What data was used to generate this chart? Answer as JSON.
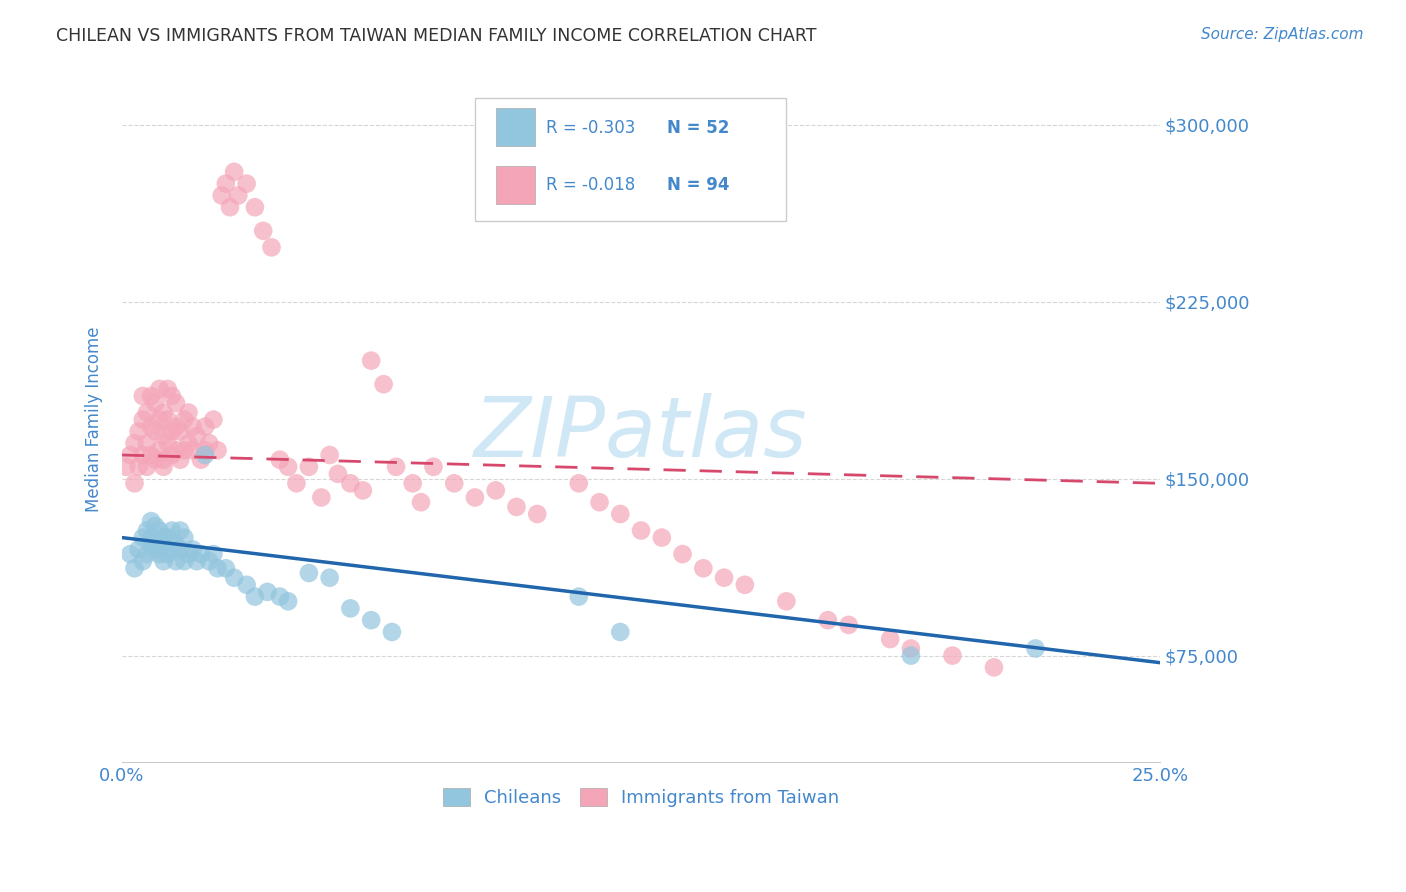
{
  "title": "CHILEAN VS IMMIGRANTS FROM TAIWAN MEDIAN FAMILY INCOME CORRELATION CHART",
  "source_text": "Source: ZipAtlas.com",
  "ylabel": "Median Family Income",
  "xlim": [
    0.0,
    0.25
  ],
  "ylim": [
    30000,
    320000
  ],
  "yticks": [
    75000,
    150000,
    225000,
    300000
  ],
  "ytick_labels": [
    "$75,000",
    "$150,000",
    "$225,000",
    "$300,000"
  ],
  "xticks": [
    0.0,
    0.05,
    0.1,
    0.15,
    0.2,
    0.25
  ],
  "xtick_labels": [
    "0.0%",
    "",
    "",
    "",
    "",
    "25.0%"
  ],
  "blue_R": "-0.303",
  "blue_N": "52",
  "pink_R": "-0.018",
  "pink_N": "94",
  "blue_color": "#92c5de",
  "pink_color": "#f4a6b8",
  "blue_line_color": "#2166ac",
  "pink_line_color": "#d6496d",
  "watermark_text": "ZIPatlas",
  "watermark_color": "#d0e8f5",
  "grid_color": "#cccccc",
  "background_color": "#ffffff",
  "tick_label_color": "#4488cc",
  "blue_scatter_x": [
    0.002,
    0.003,
    0.004,
    0.005,
    0.005,
    0.006,
    0.006,
    0.007,
    0.007,
    0.007,
    0.008,
    0.008,
    0.008,
    0.009,
    0.009,
    0.01,
    0.01,
    0.01,
    0.011,
    0.011,
    0.012,
    0.012,
    0.013,
    0.013,
    0.014,
    0.014,
    0.015,
    0.015,
    0.016,
    0.017,
    0.018,
    0.019,
    0.02,
    0.021,
    0.022,
    0.023,
    0.025,
    0.027,
    0.03,
    0.032,
    0.035,
    0.038,
    0.04,
    0.045,
    0.05,
    0.055,
    0.06,
    0.065,
    0.11,
    0.12,
    0.19,
    0.22
  ],
  "blue_scatter_y": [
    118000,
    112000,
    120000,
    115000,
    125000,
    118000,
    128000,
    122000,
    132000,
    125000,
    120000,
    130000,
    122000,
    118000,
    128000,
    125000,
    115000,
    122000,
    118000,
    125000,
    120000,
    128000,
    115000,
    122000,
    120000,
    128000,
    115000,
    125000,
    118000,
    120000,
    115000,
    118000,
    160000,
    115000,
    118000,
    112000,
    112000,
    108000,
    105000,
    100000,
    102000,
    100000,
    98000,
    110000,
    108000,
    95000,
    90000,
    85000,
    100000,
    85000,
    75000,
    78000
  ],
  "pink_scatter_x": [
    0.001,
    0.002,
    0.003,
    0.003,
    0.004,
    0.004,
    0.005,
    0.005,
    0.005,
    0.006,
    0.006,
    0.006,
    0.007,
    0.007,
    0.007,
    0.008,
    0.008,
    0.008,
    0.009,
    0.009,
    0.009,
    0.01,
    0.01,
    0.01,
    0.01,
    0.011,
    0.011,
    0.011,
    0.012,
    0.012,
    0.012,
    0.013,
    0.013,
    0.013,
    0.014,
    0.014,
    0.015,
    0.015,
    0.016,
    0.016,
    0.017,
    0.017,
    0.018,
    0.019,
    0.02,
    0.02,
    0.021,
    0.022,
    0.023,
    0.024,
    0.025,
    0.026,
    0.027,
    0.028,
    0.03,
    0.032,
    0.034,
    0.036,
    0.038,
    0.04,
    0.042,
    0.045,
    0.048,
    0.05,
    0.052,
    0.055,
    0.058,
    0.06,
    0.063,
    0.066,
    0.07,
    0.072,
    0.075,
    0.08,
    0.085,
    0.09,
    0.095,
    0.1,
    0.11,
    0.115,
    0.12,
    0.125,
    0.13,
    0.135,
    0.14,
    0.145,
    0.15,
    0.16,
    0.17,
    0.175,
    0.185,
    0.19,
    0.2,
    0.21
  ],
  "pink_scatter_y": [
    155000,
    160000,
    148000,
    165000,
    155000,
    170000,
    160000,
    175000,
    185000,
    155000,
    165000,
    178000,
    160000,
    172000,
    185000,
    158000,
    170000,
    182000,
    162000,
    175000,
    188000,
    158000,
    168000,
    178000,
    155000,
    165000,
    175000,
    188000,
    160000,
    170000,
    185000,
    162000,
    172000,
    182000,
    158000,
    170000,
    162000,
    175000,
    165000,
    178000,
    162000,
    172000,
    168000,
    158000,
    162000,
    172000,
    165000,
    175000,
    162000,
    270000,
    275000,
    265000,
    280000,
    270000,
    275000,
    265000,
    255000,
    248000,
    158000,
    155000,
    148000,
    155000,
    142000,
    160000,
    152000,
    148000,
    145000,
    200000,
    190000,
    155000,
    148000,
    140000,
    155000,
    148000,
    142000,
    145000,
    138000,
    135000,
    148000,
    140000,
    135000,
    128000,
    125000,
    118000,
    112000,
    108000,
    105000,
    98000,
    90000,
    88000,
    82000,
    78000,
    75000,
    70000
  ]
}
